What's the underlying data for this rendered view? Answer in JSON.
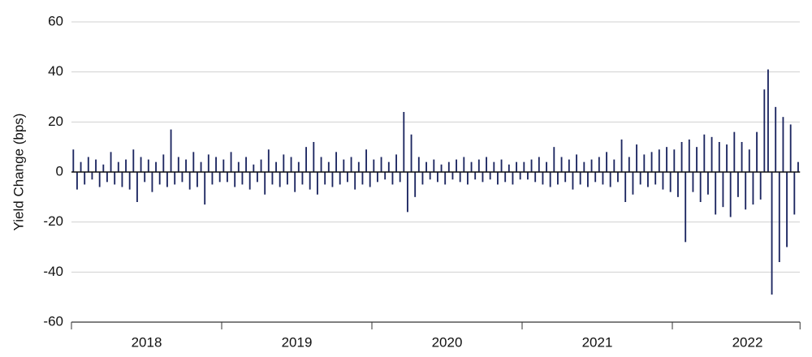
{
  "chart_data": {
    "type": "bar",
    "y_label": "Yield Change (bps)",
    "color": "#1c2660",
    "grid": true,
    "categories": [
      "2018",
      "2019",
      "2020",
      "2021",
      "2022"
    ],
    "values": [
      [
        9,
        -7,
        4,
        -5,
        6,
        -3,
        5,
        -6,
        3,
        -4,
        8,
        -5,
        4,
        -6,
        5,
        -7,
        9,
        -12,
        6,
        -4,
        5,
        -8,
        4,
        -5,
        7,
        -6,
        17,
        -5,
        6,
        -4,
        5,
        -7,
        8,
        -6,
        4,
        -13,
        7,
        -5,
        6,
        -4
      ],
      [
        5,
        -4,
        8,
        -6,
        4,
        -5,
        6,
        -7,
        3,
        -4,
        5,
        -9,
        9,
        -5,
        4,
        -6,
        7,
        -5,
        6,
        -8,
        4,
        -5,
        10,
        -7,
        12,
        -9,
        6,
        -5,
        4,
        -6,
        8,
        -5,
        5,
        -4,
        6,
        -7,
        4,
        -5,
        9,
        -6
      ],
      [
        5,
        -4,
        6,
        -3,
        4,
        -5,
        7,
        -4,
        24,
        -16,
        15,
        -10,
        6,
        -5,
        4,
        -3,
        5,
        -4,
        3,
        -5,
        4,
        -3,
        5,
        -4,
        6,
        -5,
        4,
        -3,
        5,
        -4,
        6,
        -3,
        4,
        -5,
        5,
        -4,
        3,
        -5,
        4,
        -3
      ],
      [
        4,
        -3,
        5,
        -4,
        6,
        -5,
        4,
        -6,
        10,
        -5,
        6,
        -4,
        5,
        -7,
        7,
        -5,
        4,
        -6,
        5,
        -4,
        6,
        -5,
        8,
        -6,
        5,
        -4,
        13,
        -12,
        6,
        -9,
        11,
        -5,
        7,
        -6,
        8,
        -5,
        9,
        -7,
        10,
        -8
      ],
      [
        9,
        -10,
        12,
        -28,
        13,
        -8,
        10,
        -12,
        15,
        -9,
        14,
        -17,
        12,
        -14,
        11,
        -18,
        16,
        -10,
        12,
        -15,
        9,
        -13,
        16,
        -11,
        33,
        41,
        -49,
        26,
        -36,
        22,
        -30,
        19,
        -17,
        4
      ]
    ],
    "ylim": [
      -60,
      60
    ],
    "yticks": [
      -60,
      -40,
      -20,
      0,
      20,
      40,
      60
    ]
  }
}
